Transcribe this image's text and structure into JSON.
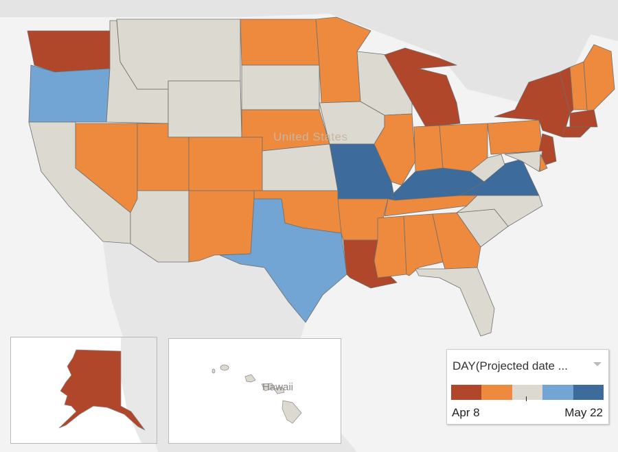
{
  "map": {
    "country_label": "United States",
    "hawaii_label": "Hawaii",
    "state_categories": {
      "WA": 0,
      "OR": 3,
      "CA": 2,
      "NV": 1,
      "ID": 2,
      "MT": 2,
      "WY": 2,
      "UT": 1,
      "CO": 1,
      "AZ": 2,
      "NM": 1,
      "ND": 1,
      "SD": 2,
      "NE": 1,
      "KS": 2,
      "OK": 1,
      "TX": 3,
      "MN": 1,
      "IA": 2,
      "MO": 4,
      "AR": 1,
      "LA": 0,
      "WI": 2,
      "IL": 1,
      "MI": 0,
      "IN": 1,
      "OH": 1,
      "KY": 4,
      "TN": 1,
      "MS": 1,
      "AL": 1,
      "GA": 1,
      "FL": 2,
      "SC": 2,
      "NC": 2,
      "VA": 4,
      "WV": 2,
      "PA": 1,
      "NY": 0,
      "VT": 0,
      "NH": 1,
      "ME": 1,
      "MA": 0,
      "CT": 0,
      "NJ": 0,
      "MD": 2,
      "DE": 1,
      "AK": 0,
      "HI": 2
    }
  },
  "legend": {
    "title": "DAY(Projected date ...",
    "min_label": "Apr 8",
    "max_label": "May 22",
    "colors": [
      "#b1472a",
      "#ee8a3e",
      "#dcd9d0",
      "#72a5d3",
      "#3d6b9b"
    ]
  }
}
